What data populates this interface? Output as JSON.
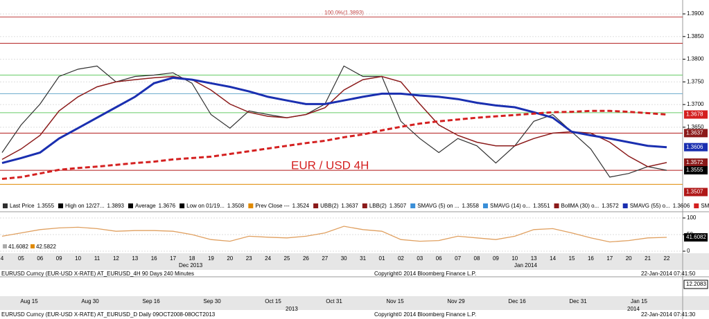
{
  "chart_data": [
    {
      "type": "line",
      "annotation": "EUR / USD 4H",
      "fib_label": "100.0%(1.3893)",
      "categories": [
        "4",
        "05",
        "06",
        "09",
        "10",
        "11",
        "12",
        "13",
        "16",
        "17",
        "18",
        "19",
        "20",
        "23",
        "24",
        "25",
        "26",
        "27",
        "30",
        "31",
        "01",
        "02",
        "03",
        "06",
        "07",
        "08",
        "09",
        "10",
        "13",
        "14",
        "15",
        "16",
        "17",
        "20",
        "21",
        "22"
      ],
      "month_labels": [
        "Dec 2013",
        "Jan 2014"
      ],
      "ylim": [
        1.3491,
        1.3923
      ],
      "yticks": [
        {
          "value": 1.39,
          "label": "1.3900"
        },
        {
          "value": 1.385,
          "label": "1.3850"
        },
        {
          "value": 1.38,
          "label": "1.3800"
        },
        {
          "value": 1.375,
          "label": "1.3750"
        },
        {
          "value": 1.37,
          "label": "1.3700"
        },
        {
          "value": 1.365,
          "label": "1.3650"
        }
      ],
      "grid": true,
      "hlines": [
        {
          "value": 1.3893,
          "color": "#c04040"
        },
        {
          "value": 1.3835,
          "color": "#b01818"
        },
        {
          "value": 1.3765,
          "color": "#6c6"
        },
        {
          "value": 1.3724,
          "color": "#6ac"
        },
        {
          "value": 1.3682,
          "color": "#6c6"
        },
        {
          "value": 1.3637,
          "color": "#b01818"
        },
        {
          "value": 1.3555,
          "color": "#b01818"
        },
        {
          "value": 1.3524,
          "color": "#e08a00"
        }
      ],
      "series": [
        {
          "name": "Last Price",
          "last": 1.3555,
          "color": "#303030",
          "width": 1.2,
          "dash": "",
          "values": [
            1.3594,
            1.3655,
            1.3701,
            1.3762,
            1.3778,
            1.3785,
            1.375,
            1.3762,
            1.3765,
            1.377,
            1.3747,
            1.3678,
            1.3648,
            1.3686,
            1.3678,
            1.3671,
            1.3678,
            1.3701,
            1.3785,
            1.3762,
            1.3762,
            1.3663,
            1.3625,
            1.3594,
            1.3625,
            1.3609,
            1.3571,
            1.3609,
            1.3663,
            1.3678,
            1.364,
            1.3602,
            1.354,
            1.3548,
            1.3563,
            1.3555
          ]
        },
        {
          "name": "BollMA (30) o...",
          "last": 1.3572,
          "color": "#8b1a1a",
          "width": 1.5,
          "dash": "",
          "values": [
            1.3579,
            1.3602,
            1.3632,
            1.3686,
            1.3717,
            1.3739,
            1.375,
            1.3755,
            1.3759,
            1.3762,
            1.3755,
            1.3732,
            1.3701,
            1.3683,
            1.3674,
            1.3671,
            1.3678,
            1.3693,
            1.3732,
            1.3755,
            1.3762,
            1.375,
            1.3701,
            1.3655,
            1.3632,
            1.3617,
            1.3609,
            1.3609,
            1.3625,
            1.3637,
            1.364,
            1.3637,
            1.3617,
            1.3586,
            1.3563,
            1.3572
          ]
        },
        {
          "name": "SMAVG (55) o...",
          "last": 1.3606,
          "color": "#1a2fb0",
          "width": 3,
          "dash": "",
          "values": [
            1.3571,
            1.3582,
            1.3594,
            1.3625,
            1.3648,
            1.3671,
            1.3694,
            1.3717,
            1.3747,
            1.3759,
            1.3755,
            1.3747,
            1.3739,
            1.3729,
            1.3717,
            1.3709,
            1.3701,
            1.3701,
            1.3709,
            1.3717,
            1.3724,
            1.3724,
            1.372,
            1.3717,
            1.3712,
            1.3704,
            1.3698,
            1.3694,
            1.3683,
            1.3671,
            1.364,
            1.3632,
            1.3625,
            1.3617,
            1.3609,
            1.3606
          ]
        },
        {
          "name": "SMAVG (200) ...",
          "last": 1.3678,
          "color": "#d42020",
          "width": 3,
          "dash": "7 4",
          "values": [
            1.3536,
            1.354,
            1.3548,
            1.3556,
            1.356,
            1.3563,
            1.3567,
            1.3571,
            1.3574,
            1.3579,
            1.3582,
            1.3585,
            1.3591,
            1.3597,
            1.3603,
            1.3609,
            1.3615,
            1.362,
            1.3628,
            1.3634,
            1.3643,
            1.3651,
            1.3658,
            1.3663,
            1.3667,
            1.3671,
            1.3674,
            1.3677,
            1.368,
            1.3683,
            1.3684,
            1.3686,
            1.3686,
            1.3684,
            1.3681,
            1.3678
          ]
        }
      ],
      "legend_extra": [
        {
          "name": "High on 12/27...",
          "last": 1.3893,
          "color": "#000"
        },
        {
          "name": "Average",
          "last": 1.3676,
          "color": "#000"
        },
        {
          "name": "Low on 01/19...",
          "last": 1.3508,
          "color": "#000"
        },
        {
          "name": "Prev Close ---",
          "last": 1.3524,
          "color": "#e08a00"
        },
        {
          "name": "UBB(2)",
          "last": 1.3637,
          "color": "#8b1a1a"
        },
        {
          "name": "LBB(2)",
          "last": 1.3507,
          "color": "#8b1a1a"
        },
        {
          "name": "SMAVG (5) on ...",
          "last": 1.3558,
          "color": "#3a8fd8"
        },
        {
          "name": "SMAVG (14) o...",
          "last": 1.3551,
          "color": "#3a8fd8"
        }
      ],
      "price_tags": [
        {
          "value": 1.3678,
          "color": "#d42020"
        },
        {
          "value": 1.3637,
          "color": "#8b1a1a"
        },
        {
          "value": 1.3606,
          "color": "#1a2fb0"
        },
        {
          "value": 1.3572,
          "color": "#8b1a1a"
        },
        {
          "value": 1.3555,
          "color": "#000"
        },
        {
          "value": 1.3507,
          "color": "#b01818"
        }
      ]
    },
    {
      "type": "line",
      "ylim": [
        -10.4,
        114.6
      ],
      "yticks": [
        0,
        50,
        100
      ],
      "series": [
        {
          "name": "RSI",
          "color": "#e0a060",
          "values": [
            45,
            55,
            65,
            70,
            72,
            68,
            60,
            62,
            62,
            60,
            50,
            35,
            30,
            45,
            42,
            40,
            45,
            55,
            75,
            65,
            60,
            35,
            30,
            32,
            45,
            40,
            35,
            45,
            65,
            68,
            55,
            40,
            28,
            32,
            40,
            41.6082
          ]
        }
      ],
      "left_values": [
        41.6082,
        42.5822
      ],
      "price_tags": [
        {
          "value": 41.6082,
          "color": "#000"
        }
      ],
      "footer": [
        "EURUSD Curncy (EUR-USD X-RATE) AT_EURUSD_4H 90 Days 240 Minutes",
        "Copyright© 2014 Bloomberg Finance L.P.",
        "22-Jan-2014 07:41:50"
      ]
    },
    {
      "type": "strip",
      "categories": [
        "Aug 15",
        "Aug 30",
        "Sep 16",
        "Sep 30",
        "Oct 15",
        "Oct 31",
        "Nov 15",
        "Nov 29",
        "Dec 16",
        "Dec 31",
        "Jan 15"
      ],
      "year_labels": [
        "2013",
        "2014"
      ],
      "price_tags": [
        {
          "value": 12.2083,
          "color": "#000"
        }
      ],
      "footer": [
        "EURUSD Curncy (EUR-USD X-RATE) AT_EURUSD_D Daily 09OCT2008-08OCT2013",
        "Copyright© 2014 Bloomberg Finance L.P.",
        "22-Jan-2014 07:41:30"
      ]
    }
  ]
}
